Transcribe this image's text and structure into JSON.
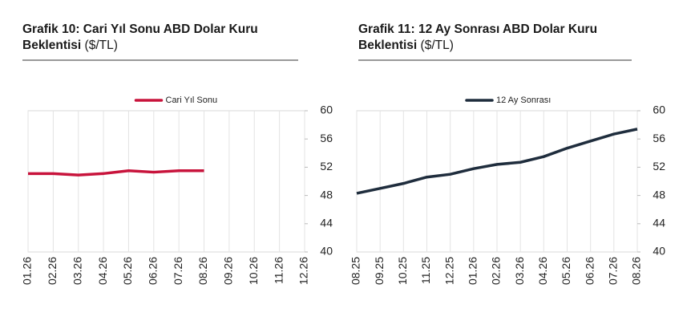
{
  "chart_data": [
    {
      "type": "line",
      "title": "Grafik 10: Cari Yıl Sonu ABD Dolar Kuru Beklentisi",
      "unit": "($/TL)",
      "categories": [
        "01.26",
        "02.26",
        "03.26",
        "04.26",
        "05.26",
        "06.26",
        "07.26",
        "08.26",
        "09.26",
        "10.26",
        "11.26",
        "12.26"
      ],
      "series": [
        {
          "name": "Cari Yıl Sonu",
          "color": "#c8143c",
          "values": [
            51.1,
            51.1,
            50.9,
            51.1,
            51.5,
            51.3,
            51.5,
            51.5,
            null,
            null,
            null,
            null
          ]
        }
      ],
      "ylim": [
        40,
        60
      ],
      "yticks": [
        40,
        44,
        48,
        52,
        56,
        60
      ],
      "grid": true,
      "legend": "top"
    },
    {
      "type": "line",
      "title": "Grafik 11: 12 Ay Sonrası ABD Dolar Kuru Beklentisi",
      "unit": "($/TL)",
      "categories": [
        "08.25",
        "09.25",
        "10.25",
        "11.25",
        "12.25",
        "01.26",
        "02.26",
        "03.26",
        "04.26",
        "05.26",
        "06.26",
        "07.26",
        "08.26"
      ],
      "series": [
        {
          "name": "12 Ay Sonrası",
          "color": "#1f2d3d",
          "values": [
            48.3,
            49.0,
            49.7,
            50.6,
            51.0,
            51.8,
            52.4,
            52.7,
            53.5,
            54.7,
            55.7,
            56.7,
            57.4
          ]
        }
      ],
      "ylim": [
        40,
        60
      ],
      "yticks": [
        40,
        44,
        48,
        52,
        56,
        60
      ],
      "grid": true,
      "legend": "top"
    }
  ]
}
